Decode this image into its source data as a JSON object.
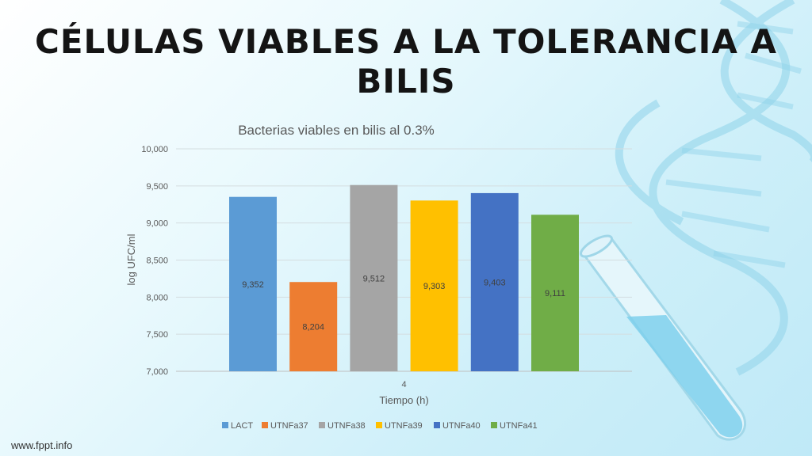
{
  "slide": {
    "title": "CÉLULAS VIABLES A LA TOLERANCIA A BILIS",
    "footer": "www.fppt.info"
  },
  "chart_data": {
    "type": "bar",
    "title": "Bacterias viables en bilis al 0.3%",
    "xlabel": "Tiempo (h)",
    "ylabel": "log UFC/ml",
    "categories": [
      "4"
    ],
    "ylim": [
      7000,
      10000
    ],
    "yticks": [
      7000,
      7500,
      8000,
      8500,
      9000,
      9500,
      10000
    ],
    "ytick_labels": [
      "7,000",
      "7,500",
      "8,000",
      "8,500",
      "9,000",
      "9,500",
      "10,000"
    ],
    "grid": true,
    "legend_position": "bottom",
    "series": [
      {
        "name": "LACT",
        "values": [
          9352
        ],
        "label": "9,352",
        "color": "#5b9bd5"
      },
      {
        "name": "UTNFa37",
        "values": [
          8204
        ],
        "label": "8,204",
        "color": "#ed7d31"
      },
      {
        "name": "UTNFa38",
        "values": [
          9512
        ],
        "label": "9,512",
        "color": "#a5a5a5"
      },
      {
        "name": "UTNFa39",
        "values": [
          9303
        ],
        "label": "9,303",
        "color": "#ffc000"
      },
      {
        "name": "UTNFa40",
        "values": [
          9403
        ],
        "label": "9,403",
        "color": "#4472c4"
      },
      {
        "name": "UTNFa41",
        "values": [
          9111
        ],
        "label": "9,111",
        "color": "#70ad47"
      }
    ]
  }
}
